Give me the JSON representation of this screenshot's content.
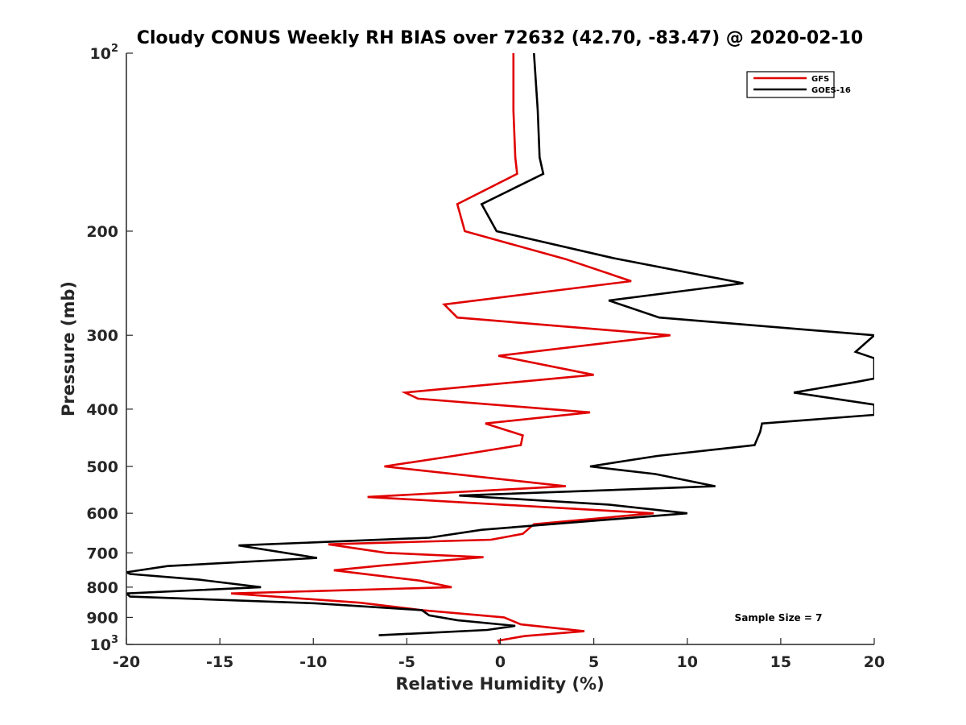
{
  "chart_data": {
    "type": "line",
    "title": "Cloudy CONUS Weekly RH BIAS over 72632 (42.70, -83.47) @ 2020-02-10",
    "xlabel": "Relative Humidity (%)",
    "ylabel": "Pressure (mb)",
    "xlim": [
      -20,
      20
    ],
    "ylim": [
      100,
      1000
    ],
    "y_scale": "log",
    "y_reversed": true,
    "x_ticks": [
      "-20",
      "-15",
      "-10",
      "-5",
      "0",
      "5",
      "10",
      "15",
      "20"
    ],
    "y_ticks": [
      {
        "value": 100,
        "base": "10",
        "exp": "2"
      },
      {
        "value": 200,
        "label": "200"
      },
      {
        "value": 300,
        "label": "300"
      },
      {
        "value": 400,
        "label": "400"
      },
      {
        "value": 500,
        "label": "500"
      },
      {
        "value": 600,
        "label": "600"
      },
      {
        "value": 700,
        "label": "700"
      },
      {
        "value": 800,
        "label": "800"
      },
      {
        "value": 900,
        "label": "900"
      },
      {
        "value": 1000,
        "base": "10",
        "exp": "3"
      }
    ],
    "legend_position": "top-right",
    "annotation": "Sample Size = 7",
    "series": [
      {
        "name": "GFS",
        "color": "#e00000",
        "points": [
          [
            0.7,
            100
          ],
          [
            0.7,
            125
          ],
          [
            0.8,
            150
          ],
          [
            0.9,
            160
          ],
          [
            -2.3,
            180
          ],
          [
            -1.9,
            200
          ],
          [
            3.5,
            223
          ],
          [
            7.0,
            243
          ],
          [
            -3.0,
            266
          ],
          [
            -2.3,
            280
          ],
          [
            9.1,
            300
          ],
          [
            -0.1,
            325
          ],
          [
            5.0,
            350
          ],
          [
            -5.1,
            375
          ],
          [
            -4.4,
            384
          ],
          [
            4.8,
            405
          ],
          [
            -0.8,
            423
          ],
          [
            1.2,
            443
          ],
          [
            1.1,
            460
          ],
          [
            -2.5,
            480
          ],
          [
            -6.2,
            500
          ],
          [
            3.5,
            540
          ],
          [
            -7.1,
            563
          ],
          [
            8.2,
            600
          ],
          [
            1.8,
            626
          ],
          [
            1.2,
            650
          ],
          [
            -0.5,
            665
          ],
          [
            -9.2,
            677
          ],
          [
            -6.1,
            700
          ],
          [
            -0.9,
            712
          ],
          [
            -6.3,
            735
          ],
          [
            -8.9,
            749
          ],
          [
            -4.3,
            780
          ],
          [
            -2.6,
            800
          ],
          [
            -14.4,
            820
          ],
          [
            -7.5,
            850
          ],
          [
            -4.2,
            875
          ],
          [
            0.2,
            900
          ],
          [
            1.1,
            925
          ],
          [
            4.5,
            950
          ],
          [
            1.3,
            968
          ],
          [
            -0.1,
            985
          ],
          [
            0.0,
            1000
          ]
        ]
      },
      {
        "name": "GOES-16",
        "color": "#000000",
        "points": [
          [
            1.8,
            100
          ],
          [
            2.0,
            125
          ],
          [
            2.1,
            150
          ],
          [
            2.3,
            160
          ],
          [
            -1.0,
            180
          ],
          [
            -0.2,
            200
          ],
          [
            6.0,
            222
          ],
          [
            13.0,
            245
          ],
          [
            5.8,
            262
          ],
          [
            8.5,
            280
          ],
          [
            20.0,
            300
          ],
          [
            19.0,
            320
          ],
          [
            20.0,
            328
          ],
          [
            20.0,
            355
          ],
          [
            19.0,
            360
          ],
          [
            15.7,
            375
          ],
          [
            20.0,
            393
          ],
          [
            20.0,
            409
          ],
          [
            14.0,
            423
          ],
          [
            13.9,
            437
          ],
          [
            13.6,
            460
          ],
          [
            8.4,
            480
          ],
          [
            4.8,
            500
          ],
          [
            8.3,
            515
          ],
          [
            11.5,
            540
          ],
          [
            -2.2,
            560
          ],
          [
            5.8,
            580
          ],
          [
            10.0,
            600
          ],
          [
            3.0,
            625
          ],
          [
            -1.0,
            640
          ],
          [
            -3.8,
            660
          ],
          [
            -14.0,
            680
          ],
          [
            -9.8,
            714
          ],
          [
            -17.8,
            737
          ],
          [
            -20.0,
            755
          ],
          [
            -19.8,
            760
          ],
          [
            -16.1,
            777
          ],
          [
            -12.8,
            800
          ],
          [
            -20.0,
            820
          ],
          [
            -19.8,
            830
          ],
          [
            -9.9,
            852
          ],
          [
            -4.2,
            875
          ],
          [
            -3.8,
            893
          ],
          [
            -2.3,
            910
          ],
          [
            0.8,
            930
          ],
          [
            -0.7,
            945
          ],
          [
            -6.5,
            965
          ]
        ]
      }
    ]
  }
}
